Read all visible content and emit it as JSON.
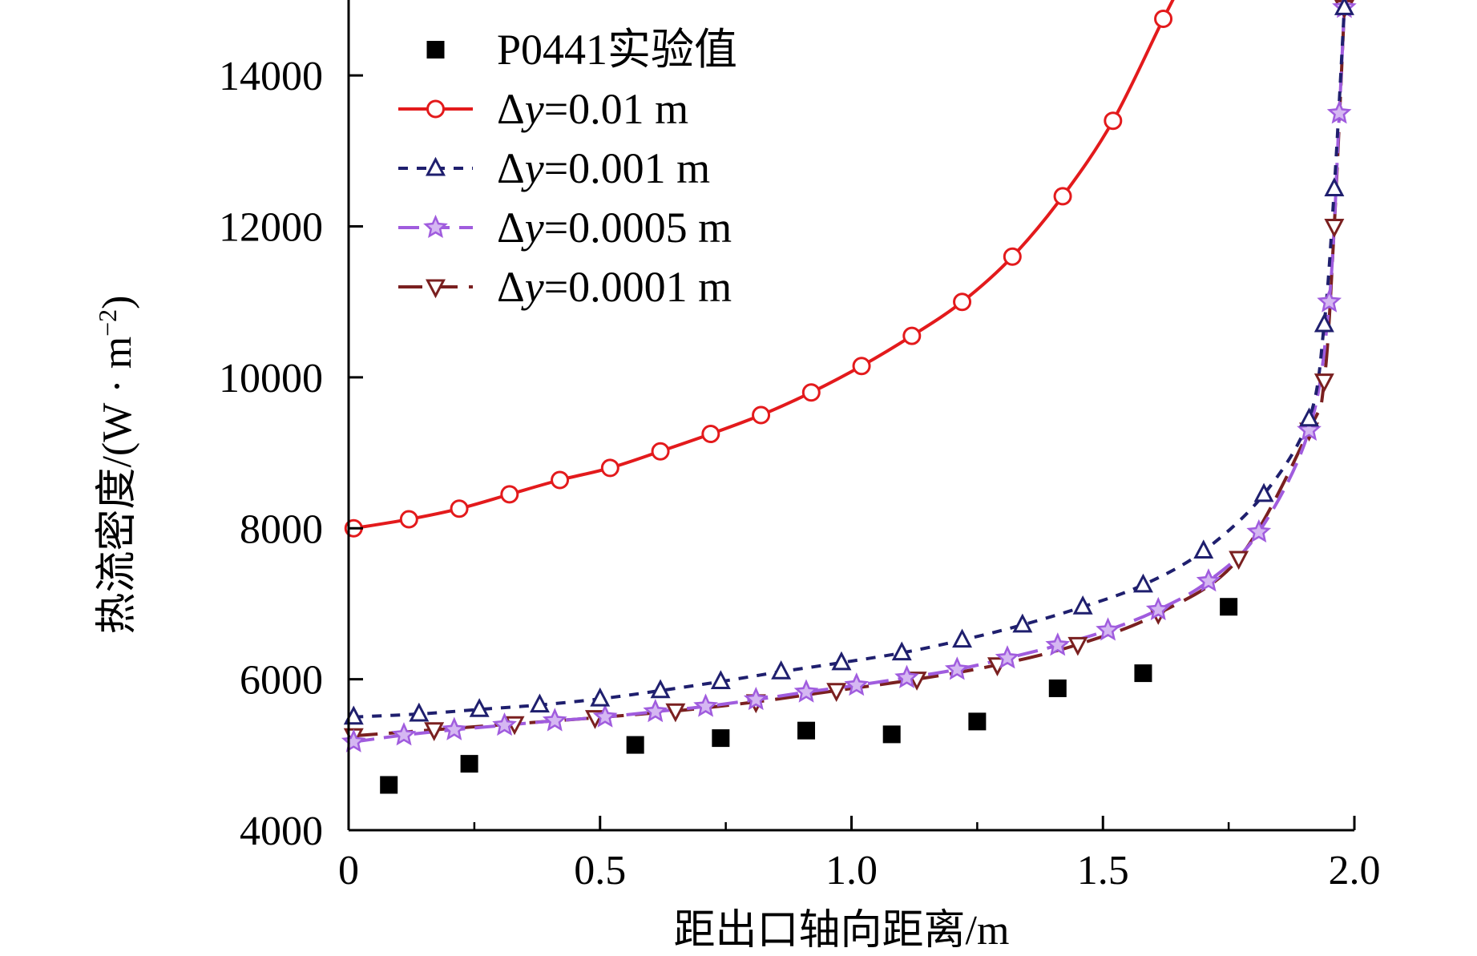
{
  "chart_data": {
    "type": "line",
    "title": "",
    "xlabel": "距出口轴向距离/m",
    "ylabel": {
      "text": "热流密度/(W · m",
      "superscript": "−2",
      "close": ")"
    },
    "xlim": [
      0,
      2.0
    ],
    "ylim": [
      4000,
      15000
    ],
    "x_ticks": [
      {
        "value": 0,
        "label": "0"
      },
      {
        "value": 0.5,
        "label": "0.5"
      },
      {
        "value": 1.0,
        "label": "1.0"
      },
      {
        "value": 1.5,
        "label": "1.5"
      },
      {
        "value": 2.0,
        "label": "2.0"
      }
    ],
    "y_ticks": [
      {
        "value": 4000,
        "label": "4000"
      },
      {
        "value": 6000,
        "label": "6000"
      },
      {
        "value": 8000,
        "label": "8000"
      },
      {
        "value": 10000,
        "label": "10000"
      },
      {
        "value": 12000,
        "label": "12000"
      },
      {
        "value": 14000,
        "label": "14000"
      }
    ],
    "grid": false,
    "legend_position": "top-left",
    "experiment": {
      "label": "P0441实验值",
      "marker": "square",
      "color": "#000000",
      "x": [
        0.08,
        0.24,
        0.57,
        0.74,
        0.91,
        1.08,
        1.25,
        1.41,
        1.58,
        1.75
      ],
      "y": [
        4600,
        4880,
        5130,
        5220,
        5320,
        5270,
        5440,
        5880,
        6080,
        6960
      ]
    },
    "series": [
      {
        "delta": "Δ",
        "var": "y",
        "rest": "=0.01 m",
        "color": "#e31a1c",
        "dash": "solid",
        "marker": "circle",
        "x": [
          0.01,
          0.12,
          0.22,
          0.32,
          0.42,
          0.52,
          0.62,
          0.72,
          0.82,
          0.92,
          1.02,
          1.12,
          1.22,
          1.32,
          1.42,
          1.52,
          1.62,
          1.67
        ],
        "y": [
          8000,
          8120,
          8260,
          8450,
          8640,
          8800,
          9020,
          9250,
          9500,
          9800,
          10150,
          10550,
          11000,
          11600,
          12400,
          13400,
          14750,
          15400
        ]
      },
      {
        "delta": "Δ",
        "var": "y",
        "rest": "=0.001 m",
        "color": "#1f1f6e",
        "dash": "12,11",
        "marker": "triangle-up",
        "x": [
          0.01,
          0.14,
          0.26,
          0.38,
          0.5,
          0.62,
          0.74,
          0.86,
          0.98,
          1.1,
          1.22,
          1.34,
          1.46,
          1.58,
          1.7,
          1.82,
          1.91,
          1.94,
          1.96,
          1.98
        ],
        "y": [
          5500,
          5540,
          5600,
          5660,
          5740,
          5850,
          5970,
          6100,
          6220,
          6350,
          6520,
          6720,
          6960,
          7250,
          7700,
          8450,
          9450,
          10700,
          12500,
          14900
        ]
      },
      {
        "delta": "Δ",
        "var": "y",
        "rest": "=0.0005 m",
        "color": "#a05cde",
        "dash": "26,12",
        "marker": "star",
        "x": [
          0.01,
          0.11,
          0.21,
          0.31,
          0.41,
          0.51,
          0.61,
          0.71,
          0.81,
          0.91,
          1.01,
          1.11,
          1.21,
          1.31,
          1.41,
          1.51,
          1.61,
          1.71,
          1.81,
          1.91,
          1.95,
          1.97,
          1.98
        ],
        "y": [
          5170,
          5260,
          5330,
          5390,
          5450,
          5500,
          5570,
          5640,
          5730,
          5830,
          5920,
          6020,
          6130,
          6280,
          6450,
          6650,
          6920,
          7300,
          7950,
          9300,
          11000,
          13500,
          14900
        ]
      },
      {
        "delta": "Δ",
        "var": "y",
        "rest": "=0.0001 m",
        "color": "#7a2020",
        "dash": "30,14",
        "marker": "triangle-down",
        "x": [
          0.01,
          0.17,
          0.33,
          0.49,
          0.65,
          0.81,
          0.97,
          1.13,
          1.29,
          1.45,
          1.61,
          1.77,
          1.91,
          1.94,
          1.96,
          1.98
        ],
        "y": [
          5250,
          5330,
          5410,
          5490,
          5580,
          5700,
          5850,
          6000,
          6190,
          6460,
          6870,
          7600,
          9300,
          9950,
          12000,
          14900
        ]
      }
    ]
  }
}
